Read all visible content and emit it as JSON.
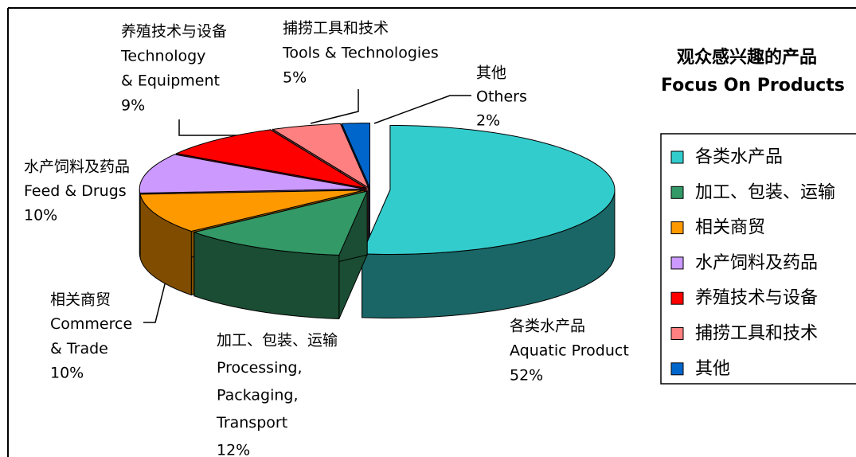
{
  "chart_data": {
    "type": "pie",
    "title": "观众感兴趣的产品",
    "subtitle": "Focus On Products",
    "categories": [
      "各类水产品",
      "加工、包装、运输",
      "相关商贸",
      "水产饲料及药品",
      "养殖技术与设备",
      "捕捞工具和技术",
      "其他"
    ],
    "english": [
      [
        "Aquatic Product"
      ],
      [
        "Processing,",
        "Packaging,",
        "Transport"
      ],
      [
        "Commerce",
        "& Trade"
      ],
      [
        "Feed & Drugs"
      ],
      [
        "Technology",
        "& Equipment"
      ],
      [
        "Tools & Technologies"
      ],
      [
        "Others"
      ]
    ],
    "values": [
      52,
      12,
      10,
      10,
      9,
      5,
      2
    ],
    "value_labels": [
      "52%",
      "12%",
      "10%",
      "10%",
      "9%",
      "5%",
      "2%"
    ],
    "colors": [
      "#33CCCC",
      "#339966",
      "#FF9900",
      "#CC99FF",
      "#FF0000",
      "#FF8080",
      "#0066CC"
    ],
    "legend": "right"
  }
}
